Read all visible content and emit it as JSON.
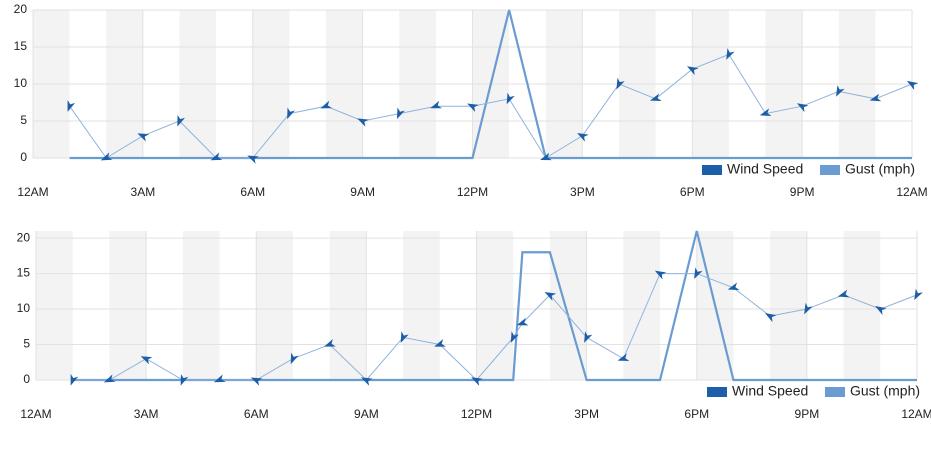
{
  "chart_data": [
    {
      "type": "line",
      "legend": "lower right",
      "grid": true,
      "x": [
        1,
        2,
        3,
        4,
        5,
        6,
        7,
        8,
        9,
        10,
        11,
        12,
        13,
        14,
        15,
        16,
        17,
        18,
        19,
        20,
        21,
        22,
        23,
        24
      ],
      "xlim": [
        0,
        24
      ],
      "xticks": [
        {
          "value": 0,
          "label": "12AM"
        },
        {
          "value": 3,
          "label": "3AM"
        },
        {
          "value": 6,
          "label": "6AM"
        },
        {
          "value": 9,
          "label": "9AM"
        },
        {
          "value": 12,
          "label": "12PM"
        },
        {
          "value": 15,
          "label": "3PM"
        },
        {
          "value": 18,
          "label": "6PM"
        },
        {
          "value": 21,
          "label": "9PM"
        },
        {
          "value": 24,
          "label": "12AM"
        }
      ],
      "ylim": [
        0,
        20
      ],
      "yticks": [
        0,
        5,
        10,
        15,
        20
      ],
      "series": [
        {
          "name": "Wind Speed",
          "color": "#1d5ea8",
          "values": [
            7,
            0,
            3,
            5,
            0,
            0,
            6,
            7,
            5,
            6,
            7,
            7,
            8,
            0,
            3,
            10,
            8,
            12,
            14,
            6,
            7,
            9,
            8,
            10
          ]
        },
        {
          "name": "Gust (mph)",
          "color": "#6a9bd1",
          "values": [
            0,
            0,
            0,
            0,
            0,
            0,
            0,
            0,
            0,
            0,
            0,
            0,
            20,
            0,
            0,
            0,
            0,
            0,
            0,
            0,
            0,
            0,
            0,
            0
          ]
        }
      ]
    },
    {
      "type": "line",
      "legend": "lower right",
      "grid": true,
      "x": [
        1,
        2,
        3,
        4,
        5,
        6,
        7,
        8,
        9,
        10,
        11,
        12,
        13,
        13.25,
        14,
        15,
        16,
        17,
        18,
        19,
        20,
        21,
        22,
        23,
        24
      ],
      "xlim": [
        0,
        24
      ],
      "xticks": [
        {
          "value": 0,
          "label": "12AM"
        },
        {
          "value": 3,
          "label": "3AM"
        },
        {
          "value": 6,
          "label": "6AM"
        },
        {
          "value": 9,
          "label": "9AM"
        },
        {
          "value": 12,
          "label": "12PM"
        },
        {
          "value": 15,
          "label": "3PM"
        },
        {
          "value": 18,
          "label": "6PM"
        },
        {
          "value": 21,
          "label": "9PM"
        },
        {
          "value": 24,
          "label": "12AM"
        }
      ],
      "ylim": [
        0,
        21
      ],
      "yticks": [
        0,
        5,
        10,
        15,
        20
      ],
      "series": [
        {
          "name": "Wind Speed",
          "color": "#1d5ea8",
          "values": [
            0,
            0,
            3,
            0,
            0,
            0,
            3,
            5,
            0,
            6,
            5,
            0,
            6,
            8,
            12,
            6,
            3,
            15,
            15,
            13,
            9,
            10,
            12,
            10,
            12
          ]
        },
        {
          "name": "Gust (mph)",
          "color": "#6a9bd1",
          "values": [
            0,
            0,
            0,
            0,
            0,
            0,
            0,
            0,
            0,
            0,
            0,
            0,
            0,
            18,
            18,
            0,
            0,
            0,
            21,
            0,
            0,
            0,
            0,
            0,
            0
          ]
        }
      ]
    }
  ]
}
